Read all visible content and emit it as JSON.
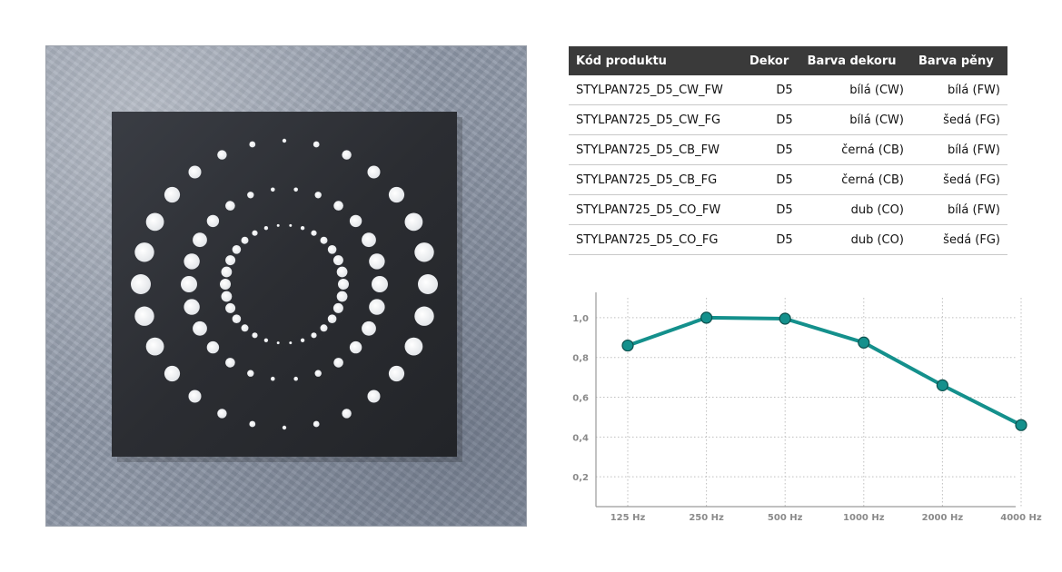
{
  "table": {
    "headers": [
      "Kód produktu",
      "Dekor",
      "Barva  dekoru",
      "Barva pěny"
    ],
    "rows": [
      [
        "STYLPAN725_D5_CW_FW",
        "D5",
        "bílá (CW)",
        "bílá (FW)"
      ],
      [
        "STYLPAN725_D5_CW_FG",
        "D5",
        "bílá (CW)",
        "šedá (FG)"
      ],
      [
        "STYLPAN725_D5_CB_FW",
        "D5",
        "černá (CB)",
        "bílá (FW)"
      ],
      [
        "STYLPAN725_D5_CB_FG",
        "D5",
        "černá (CB)",
        "šedá (FG)"
      ],
      [
        "STYLPAN725_D5_CO_FW",
        "D5",
        "dub (CO)",
        "bílá (FW)"
      ],
      [
        "STYLPAN725_D5_CO_FG",
        "D5",
        "dub (CO)",
        "šedá (FG)"
      ]
    ]
  },
  "chart_data": {
    "type": "line",
    "categories": [
      "125 Hz",
      "250 Hz",
      "500 Hz",
      "1000 Hz",
      "2000 Hz",
      "4000 Hz"
    ],
    "series": [
      {
        "values": [
          0.86,
          1.0,
          0.995,
          0.875,
          0.66,
          0.46
        ],
        "color": "#14908c"
      }
    ],
    "yticks": [
      "0,2",
      "0,4",
      "0,6",
      "0,8",
      "1,0"
    ],
    "ytick_values": [
      0.2,
      0.4,
      0.6,
      0.8,
      1.0
    ],
    "ylim": [
      0.05,
      1.1
    ],
    "grid": true,
    "xlabel": "",
    "ylabel": "",
    "title": ""
  },
  "colors": {
    "line": "#14908c",
    "marker": "#14908c",
    "table_header": "#3a3a3a",
    "panel": "#2c2e33",
    "wall": "#8f98a8"
  }
}
